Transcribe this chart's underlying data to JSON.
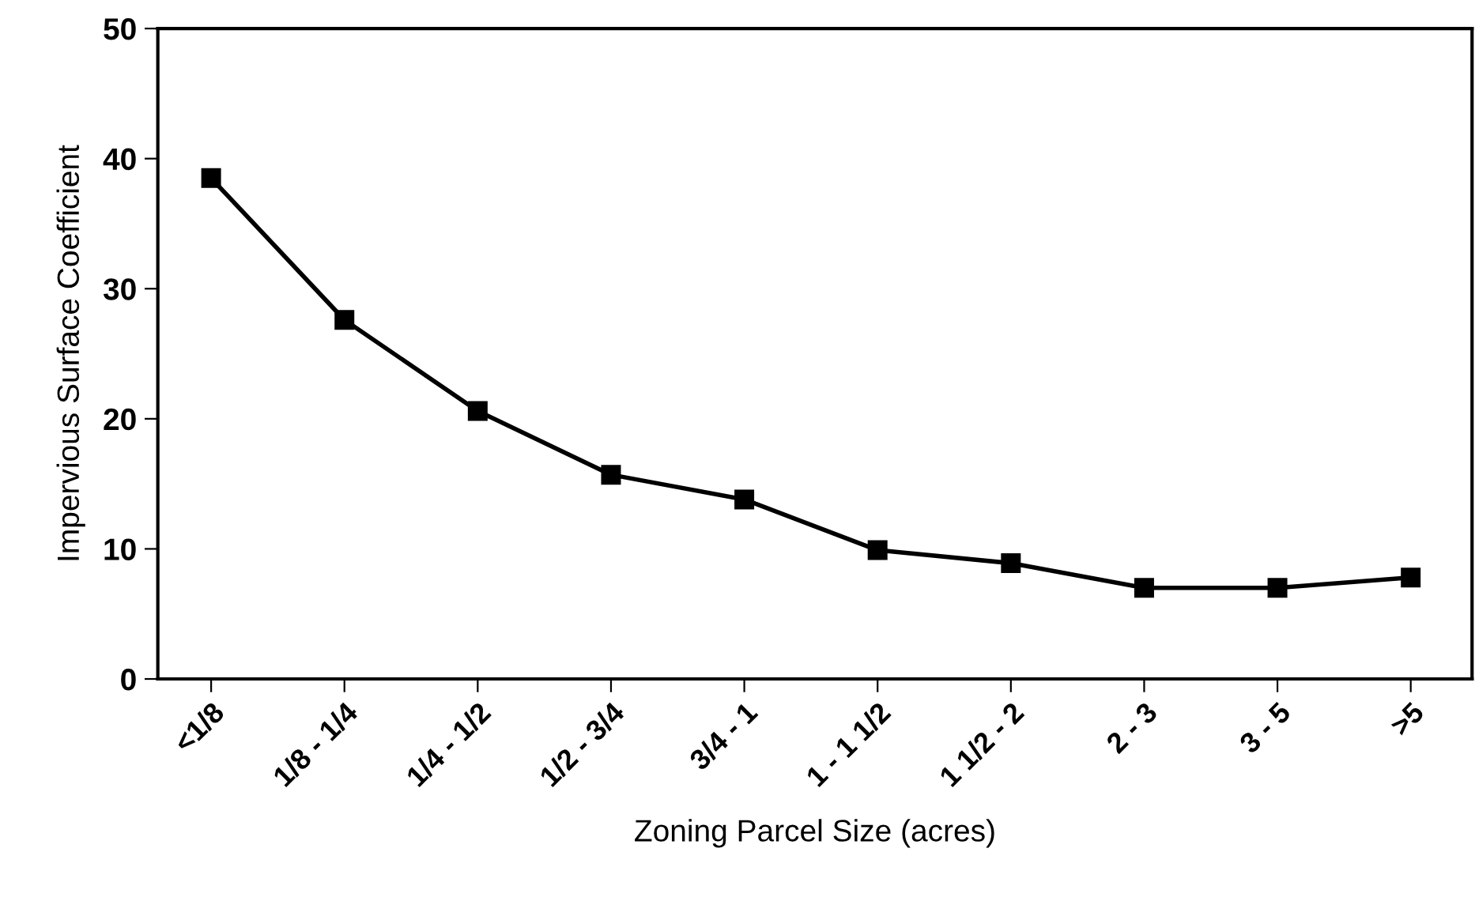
{
  "chart_data": {
    "type": "line",
    "xlabel": "Zoning Parcel Size (acres)",
    "ylabel": "Impervious Surface Coefficient",
    "categories": [
      "<1/8",
      "1/8 - 1/4",
      "1/4 - 1/2",
      "1/2 - 3/4",
      "3/4 - 1",
      "1 - 1 1/2",
      "1 1/2 - 2",
      "2 - 3",
      "3 - 5",
      ">5"
    ],
    "series": [
      {
        "color": "#000000",
        "values": [
          38.5,
          27.6,
          20.6,
          15.7,
          13.8,
          9.9,
          8.9,
          7.0,
          7.0,
          7.8
        ]
      }
    ],
    "ylim": [
      0,
      50
    ],
    "yticks": [
      0,
      10,
      20,
      30,
      40,
      50
    ],
    "marker": "square",
    "line_style": "solid",
    "grid": false,
    "legend": false
  }
}
